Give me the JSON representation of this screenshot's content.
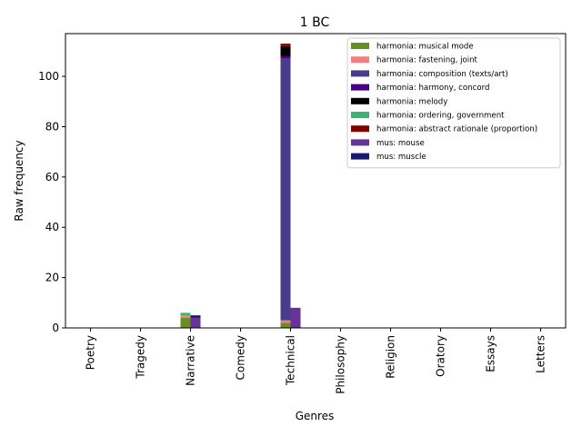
{
  "chart_data": {
    "type": "bar",
    "stacked": true,
    "title": "1 BC",
    "xlabel": "Genres",
    "ylabel": "Raw frequency",
    "categories": [
      "Poetry",
      "Tragedy",
      "Narrative",
      "Comedy",
      "Technical",
      "Philosophy",
      "Religion",
      "Oratory",
      "Essays",
      "Letters"
    ],
    "ylim": [
      0,
      117
    ],
    "yticks": [
      0,
      20,
      40,
      60,
      80,
      100
    ],
    "grid": false,
    "legend_position": "top-right",
    "groups": [
      {
        "name": "harmonia",
        "offset": -0.1,
        "series": [
          {
            "name": "harmonia: musical mode",
            "color": "#6b8e23",
            "values": [
              0,
              0,
              4,
              0,
              2,
              0,
              0,
              0,
              0,
              0
            ]
          },
          {
            "name": "harmonia: fastening, joint",
            "color": "#f08080",
            "values": [
              0,
              0,
              1,
              0,
              1,
              0,
              0,
              0,
              0,
              0
            ]
          },
          {
            "name": "harmonia: composition (texts/art)",
            "color": "#483d8b",
            "values": [
              0,
              0,
              0,
              0,
              104,
              0,
              0,
              0,
              0,
              0
            ]
          },
          {
            "name": "harmonia: harmony, concord",
            "color": "#4b0082",
            "values": [
              0,
              0,
              0,
              0,
              1,
              0,
              0,
              0,
              0,
              0
            ]
          },
          {
            "name": "harmonia: melody",
            "color": "#000000",
            "values": [
              0,
              0,
              0,
              0,
              4,
              0,
              0,
              0,
              0,
              0
            ]
          },
          {
            "name": "harmonia: ordering, government",
            "color": "#3cb371",
            "values": [
              0,
              0,
              1,
              0,
              0,
              0,
              0,
              0,
              0,
              0
            ]
          },
          {
            "name": "harmonia: abstract rationale (proportion)",
            "color": "#800000",
            "values": [
              0,
              0,
              0,
              0,
              1,
              0,
              0,
              0,
              0,
              0
            ]
          }
        ]
      },
      {
        "name": "mus",
        "offset": 0.1,
        "series": [
          {
            "name": "mus: mouse",
            "color": "#663399",
            "values": [
              0,
              0,
              4,
              0,
              8,
              0,
              0,
              0,
              0,
              0
            ]
          },
          {
            "name": "mus: muscle",
            "color": "#191970",
            "values": [
              0,
              0,
              1,
              0,
              0,
              0,
              0,
              0,
              0,
              0
            ]
          }
        ]
      }
    ]
  }
}
